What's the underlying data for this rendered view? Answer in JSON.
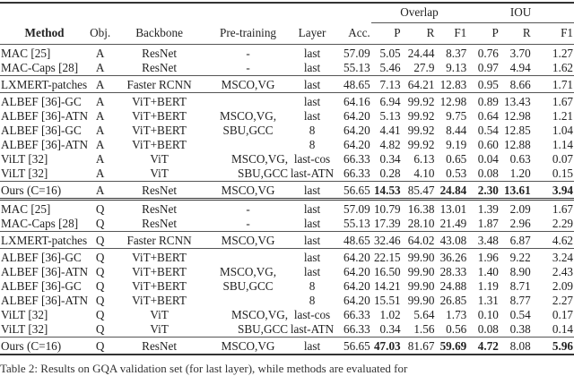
{
  "header": {
    "group_overlap": "Overlap",
    "group_iou": "IOU",
    "columns": [
      "Method",
      "Obj.",
      "Backbone",
      "Pre-training",
      "Layer",
      "Acc.",
      "P",
      "R",
      "F1",
      "P",
      "R",
      "F1"
    ]
  },
  "groups": [
    {
      "blocks": [
        [
          {
            "cells": [
              "MAC [25]",
              "A",
              "ResNet",
              "-",
              "last",
              "57.09",
              "5.05",
              "24.44",
              "8.37",
              "0.76",
              "3.70",
              "1.27"
            ],
            "bold": []
          },
          {
            "cells": [
              "MAC-Caps [28]",
              "A",
              "ResNet",
              "-",
              "last",
              "55.13",
              "5.46",
              "27.9",
              "9.13",
              "0.97",
              "4.94",
              "1.62"
            ],
            "bold": []
          }
        ],
        [
          {
            "cells": [
              "LXMERT-patches",
              "A",
              "Faster RCNN",
              "MSCO,VG",
              "last",
              "48.65",
              "7.13",
              "64.21",
              "12.83",
              "0.95",
              "8.66",
              "1.71"
            ],
            "bold": []
          }
        ],
        [
          {
            "cells": [
              "ALBEF [36]-GC",
              "A",
              "ViT+BERT",
              "",
              "last",
              "64.16",
              "6.94",
              "99.92",
              "12.98",
              "0.89",
              "13.43",
              "1.67"
            ],
            "bold": []
          },
          {
            "cells": [
              "ALBEF [36]-ATN",
              "A",
              "ViT+BERT",
              "MSCO,VG,",
              "last",
              "64.20",
              "5.13",
              "99.92",
              "9.75",
              "0.64",
              "12.98",
              "1.21"
            ],
            "bold": []
          },
          {
            "cells": [
              "ALBEF [36]-GC",
              "A",
              "ViT+BERT",
              "SBU,GCC",
              "8",
              "64.20",
              "4.41",
              "99.92",
              "8.44",
              "0.54",
              "12.85",
              "1.04"
            ],
            "bold": []
          },
          {
            "cells": [
              "ALBEF [36]-ATN",
              "A",
              "ViT+BERT",
              "",
              "8",
              "64.20",
              "4.82",
              "99.92",
              "9.19",
              "0.60",
              "12.88",
              "1.14"
            ],
            "bold": []
          },
          {
            "cells": [
              "ViLT [32]",
              "A",
              "ViT",
              "MSCO,VG,",
              "last-cos",
              "66.33",
              "0.34",
              "6.13",
              "0.65",
              "0.04",
              "0.63",
              "0.07"
            ],
            "bold": []
          },
          {
            "cells": [
              "ViLT [32]",
              "A",
              "ViT",
              "SBU,GCC",
              "last-ATN",
              "66.33",
              "0.28",
              "4.10",
              "0.53",
              "0.08",
              "1.20",
              "0.15"
            ],
            "bold": []
          }
        ],
        [
          {
            "cells": [
              "Ours (C=16)",
              "A",
              "ResNet",
              "MSCO,VG",
              "last",
              "56.65",
              "14.53",
              "85.47",
              "24.84",
              "2.30",
              "13.61",
              "3.94"
            ],
            "bold": [
              6,
              8,
              9,
              10,
              11
            ]
          }
        ]
      ]
    },
    {
      "blocks": [
        [
          {
            "cells": [
              "MAC [25]",
              "Q",
              "ResNet",
              "-",
              "last",
              "57.09",
              "10.79",
              "16.38",
              "13.01",
              "1.39",
              "2.09",
              "1.67"
            ],
            "bold": []
          },
          {
            "cells": [
              "MAC-Caps [28]",
              "Q",
              "ResNet",
              "-",
              "last",
              "55.13",
              "17.39",
              "28.10",
              "21.49",
              "1.87",
              "2.96",
              "2.29"
            ],
            "bold": []
          }
        ],
        [
          {
            "cells": [
              "LXMERT-patches",
              "Q",
              "Faster RCNN",
              "MSCO,VG",
              "last",
              "48.65",
              "32.46",
              "64.02",
              "43.08",
              "3.48",
              "6.87",
              "4.62"
            ],
            "bold": []
          }
        ],
        [
          {
            "cells": [
              "ALBEF [36]-GC",
              "Q",
              "ViT+BERT",
              "",
              "last",
              "64.20",
              "22.15",
              "99.90",
              "36.26",
              "1.96",
              "9.22",
              "3.24"
            ],
            "bold": []
          },
          {
            "cells": [
              "ALBEF [36]-ATN",
              "Q",
              "ViT+BERT",
              "MSCO,VG,",
              "last",
              "64.20",
              "16.50",
              "99.90",
              "28.33",
              "1.40",
              "8.90",
              "2.43"
            ],
            "bold": []
          },
          {
            "cells": [
              "ALBEF [36]-GC",
              "Q",
              "ViT+BERT",
              "SBU,GCC",
              "8",
              "64.20",
              "14.21",
              "99.90",
              "24.88",
              "1.19",
              "8.71",
              "2.09"
            ],
            "bold": []
          },
          {
            "cells": [
              "ALBEF [36]-ATN",
              "Q",
              "ViT+BERT",
              "",
              "8",
              "64.20",
              "15.51",
              "99.90",
              "26.85",
              "1.31",
              "8.77",
              "2.27"
            ],
            "bold": []
          },
          {
            "cells": [
              "ViLT [32]",
              "Q",
              "ViT",
              "MSCO,VG,",
              "last-cos",
              "66.33",
              "1.02",
              "5.64",
              "1.73",
              "0.10",
              "0.54",
              "0.17"
            ],
            "bold": []
          },
          {
            "cells": [
              "ViLT [32]",
              "Q",
              "ViT",
              "SBU,GCC",
              "last-ATN",
              "66.33",
              "0.34",
              "1.56",
              "0.56",
              "0.08",
              "0.38",
              "0.14"
            ],
            "bold": []
          }
        ],
        [
          {
            "cells": [
              "Ours (C=16)",
              "Q",
              "ResNet",
              "MSCO,VG",
              "last",
              "56.65",
              "47.03",
              "81.67",
              "59.69",
              "4.72",
              "8.08",
              "5.96"
            ],
            "bold": [
              6,
              8,
              9,
              11
            ]
          }
        ]
      ]
    }
  ],
  "caption": "Table 2: Results on GQA validation set (for last layer), while methods are evaluated for"
}
